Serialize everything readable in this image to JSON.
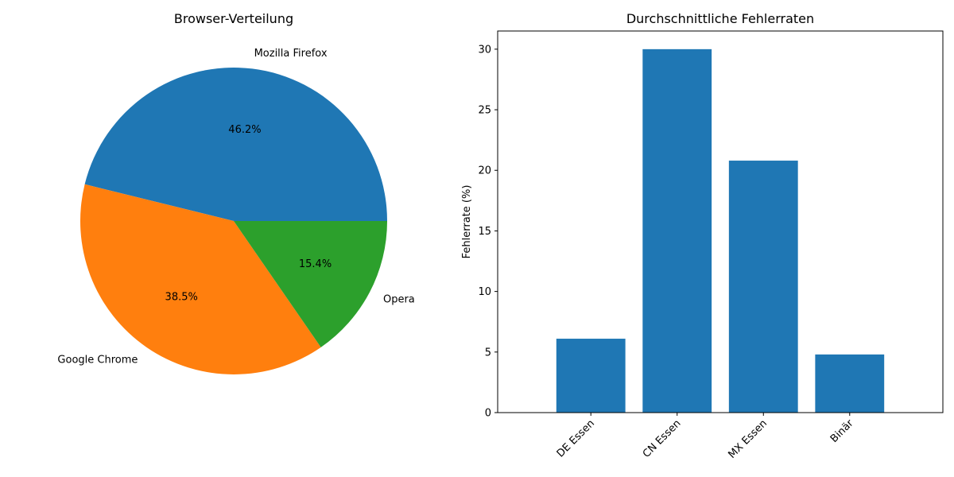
{
  "chart_data": [
    {
      "type": "pie",
      "title": "Browser-Verteilung",
      "start_angle_deg": 0,
      "slices": [
        {
          "label": "Mozilla Firefox",
          "value": 46.2,
          "pct_label": "46.2%",
          "color": "#1f77b4"
        },
        {
          "label": "Google Chrome",
          "value": 38.5,
          "pct_label": "38.5%",
          "color": "#ff7f0e"
        },
        {
          "label": "Opera",
          "value": 15.4,
          "pct_label": "15.4%",
          "color": "#2ca02c"
        }
      ]
    },
    {
      "type": "bar",
      "title": "Durchschnittliche Fehlerraten",
      "xlabel": "",
      "ylabel": "Fehlerrate (%)",
      "categories": [
        "DE Essen",
        "CN Essen",
        "MX Essen",
        "Binär"
      ],
      "values": [
        6.1,
        30.0,
        20.8,
        4.8
      ],
      "ylim": [
        0,
        31.5
      ],
      "yticks": [
        0,
        5,
        10,
        15,
        20,
        25,
        30
      ],
      "color": "#1f77b4",
      "xtick_rotation_deg": 45,
      "grid": false
    }
  ]
}
